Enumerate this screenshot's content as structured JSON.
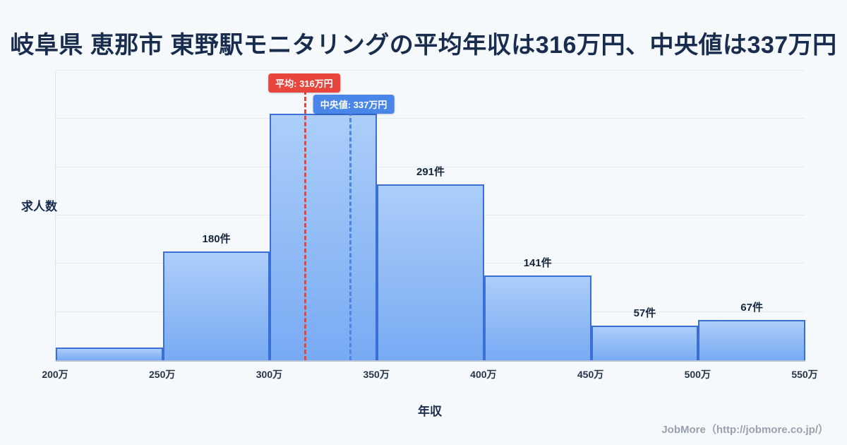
{
  "footer": {
    "credit": "JobMore（http://jobmore.co.jp/）"
  },
  "colors": {
    "background": "#f6f9fc",
    "title_text": "#182c4e",
    "bar_fill_top": "#accef9",
    "bar_fill_bottom": "#78aaf3",
    "bar_border": "#3a6fd8",
    "average_line": "#e8453c",
    "median_line": "#4a86e8",
    "badge_text": "#ffffff",
    "grid_line": "#e4eaf2",
    "axis_text": "#253549"
  },
  "chart_data": {
    "type": "bar",
    "title": "岐阜県 恵那市 東野駅モニタリングの平均年収は316万円、中央値は337万円",
    "xlabel": "年収",
    "ylabel": "求人数",
    "x_tick_labels": [
      "200万",
      "250万",
      "300万",
      "350万",
      "400万",
      "450万",
      "500万",
      "550万"
    ],
    "x_range_man_yen": [
      200,
      550
    ],
    "bin_width_man_yen": 50,
    "categories": [
      "200万-250万",
      "250万-300万",
      "300万-350万",
      "350万-400万",
      "400万-450万",
      "450万-500万",
      "500万-550万"
    ],
    "values": [
      21,
      180,
      409,
      291,
      141,
      57,
      67
    ],
    "value_labels": [
      "",
      "180件",
      "",
      "291件",
      "141件",
      "57件",
      "67件"
    ],
    "ylim": [
      0,
      480
    ],
    "grid": true,
    "legend": "none",
    "average": {
      "value": 316,
      "label": "平均: 316万円"
    },
    "median": {
      "value": 337,
      "label": "中央値: 337万円"
    }
  }
}
